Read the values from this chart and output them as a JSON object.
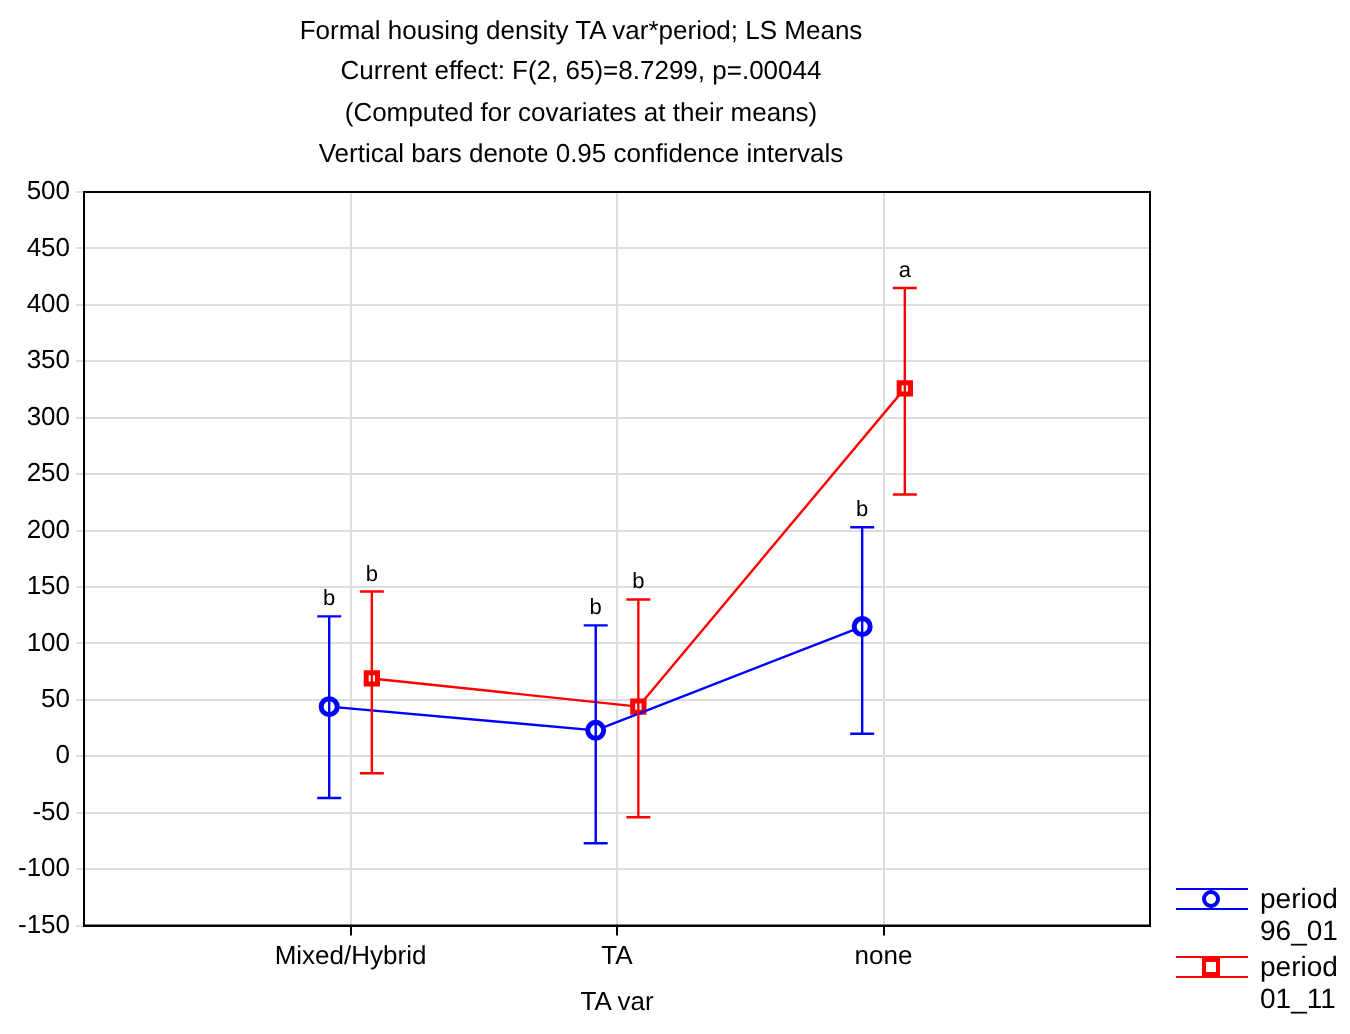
{
  "chart_data": {
    "type": "line",
    "title": "Formal housing density TA var*period; LS Means",
    "subtitle": "Current effect: F(2, 65)=8.7299, p=.00044\n(Computed for covariates at their means)\nVertical bars denote 0.95 confidence intervals",
    "xlabel": "TA var",
    "categories": [
      "Mixed/Hybrid",
      "TA",
      "none"
    ],
    "series": [
      {
        "name": "period 96_01",
        "color": "#0000ff",
        "marker": "circle",
        "values": [
          44,
          23,
          115
        ],
        "errors": [
          [
            -37,
            124
          ],
          [
            -77,
            116
          ],
          [
            20,
            203
          ]
        ]
      },
      {
        "name": "period 01_11",
        "color": "#ff0000",
        "marker": "square",
        "values": [
          69,
          44,
          326
        ],
        "errors": [
          [
            -15,
            146
          ],
          [
            -54,
            139
          ],
          [
            232,
            415
          ]
        ]
      }
    ],
    "ylim": [
      -150,
      500
    ],
    "yticks": [
      -150,
      -100,
      -50,
      0,
      50,
      100,
      150,
      200,
      250,
      300,
      350,
      400,
      450,
      500
    ],
    "grid": true,
    "legend": "bottom right",
    "annotations": [
      {
        "text": "b",
        "x": "Mixed/Hybrid",
        "y": 124
      },
      {
        "text": "b",
        "x": "Mixed/Hybrid",
        "y": 146
      },
      {
        "text": "b",
        "x": "TA",
        "y": 116
      },
      {
        "text": "b",
        "x": "TA",
        "y": 139
      },
      {
        "text": "b",
        "x": "none",
        "y": 203
      },
      {
        "text": "a",
        "x": "none",
        "y": 415
      }
    ]
  }
}
